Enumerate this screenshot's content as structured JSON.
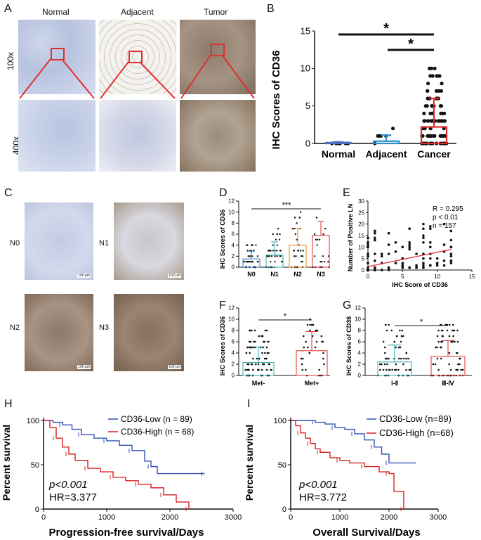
{
  "panels": {
    "A": {
      "letter": "A",
      "columns": [
        "Normal",
        "Adjacent",
        "Tumor"
      ],
      "rows": [
        "100x",
        "400x"
      ]
    },
    "B": {
      "letter": "B",
      "ylabel": "IHC Scores of CD36",
      "categories": [
        "Normal",
        "Adjacent",
        "Cancer"
      ],
      "sig": [
        "*",
        "*"
      ],
      "yticks": [
        "0",
        "5",
        "10",
        "15"
      ]
    },
    "C": {
      "letter": "C",
      "labels": [
        "N0",
        "N1",
        "N2",
        "N3"
      ],
      "scale": "100 μm"
    },
    "D": {
      "letter": "D",
      "ylabel": "IHC Scores of CD36",
      "categories": [
        "N0",
        "N1",
        "N2",
        "N3"
      ],
      "sig": "***",
      "yticks": [
        "0",
        "2",
        "4",
        "6",
        "8",
        "10",
        "12"
      ]
    },
    "E": {
      "letter": "E",
      "ylabel": "Number of Positive LN",
      "xlabel": "IHC Score of CD36",
      "stats": [
        "R = 0.295",
        "p < 0.01",
        "n = 157"
      ],
      "xticks": [
        "0",
        "5",
        "10",
        "15"
      ],
      "yticks": [
        "0",
        "5",
        "10",
        "15",
        "20",
        "25",
        "30"
      ]
    },
    "F": {
      "letter": "F",
      "ylabel": "IHC Scores of CD36",
      "categories": [
        "Met-",
        "Met+"
      ],
      "sig": "*",
      "yticks": [
        "0",
        "2",
        "4",
        "6",
        "8",
        "10",
        "12"
      ]
    },
    "G": {
      "letter": "G",
      "ylabel": "IHC Scores of CD36",
      "categories": [
        "Ⅰ-Ⅱ",
        "Ⅲ-Ⅳ"
      ],
      "sig": "*",
      "yticks": [
        "0",
        "2",
        "4",
        "6",
        "8",
        "10",
        "12"
      ]
    },
    "H": {
      "letter": "H",
      "ylabel": "Percent survival",
      "xlabel": "Progression-free survival/Days",
      "legend": [
        "CD36-Low (n = 89)",
        "CD36-High (n = 68)"
      ],
      "pval": "p<0.001",
      "hr": "HR=3.377",
      "xticks": [
        "0",
        "1000",
        "2000",
        "3000"
      ],
      "yticks": [
        "0",
        "50",
        "100"
      ]
    },
    "I": {
      "letter": "I",
      "ylabel": "Percent survival",
      "xlabel": "Overall Survival/Days",
      "legend": [
        "CD36-Low (n=89)",
        "CD36-High (n=68)"
      ],
      "pval": "p<0.001",
      "hr": "HR=3.772",
      "xticks": [
        "0",
        "1000",
        "2000",
        "3000"
      ],
      "yticks": [
        "0",
        "50",
        "100"
      ]
    }
  },
  "colors": {
    "normal": "#4a6fc2",
    "adjacent": "#2a8fd0",
    "cancer": "#e02a2a",
    "teal": "#28a8a8",
    "orange": "#e08a1a",
    "low": "#3050b0",
    "high": "#d82020"
  },
  "chart_data": [
    {
      "type": "scatter",
      "id": "B",
      "categories": [
        "Normal",
        "Adjacent",
        "Cancer"
      ],
      "means": [
        0.1,
        0.3,
        2.2
      ],
      "sd": [
        0.1,
        0.8,
        3.8
      ],
      "ylim": [
        0,
        15
      ]
    },
    {
      "type": "scatter",
      "id": "D",
      "categories": [
        "N0",
        "N1",
        "N2",
        "N3"
      ],
      "means": [
        1.5,
        2.2,
        4.0,
        5.8
      ],
      "sd": [
        1.4,
        2.4,
        3.0,
        2.5
      ],
      "ylim": [
        0,
        12
      ]
    },
    {
      "type": "scatter",
      "id": "E",
      "xlim": [
        0,
        15
      ],
      "ylim": [
        0,
        30
      ],
      "fit": [
        [
          0,
          1.5
        ],
        [
          12,
          9
        ]
      ]
    },
    {
      "type": "scatter",
      "id": "F",
      "categories": [
        "Met-",
        "Met+"
      ],
      "means": [
        2.3,
        4.4
      ],
      "sd": [
        2.8,
        3.4
      ],
      "ylim": [
        0,
        12
      ]
    },
    {
      "type": "scatter",
      "id": "G",
      "categories": [
        "Ⅰ-Ⅱ",
        "Ⅲ-Ⅳ"
      ],
      "means": [
        2.4,
        3.4
      ],
      "sd": [
        3.0,
        2.8
      ],
      "ylim": [
        0,
        12
      ]
    },
    {
      "type": "line",
      "id": "H",
      "xlim": [
        0,
        3000
      ],
      "ylim": [
        0,
        100
      ],
      "series": [
        {
          "name": "CD36-Low (n = 89)",
          "points": [
            [
              0,
              100
            ],
            [
              150,
              98
            ],
            [
              300,
              95
            ],
            [
              450,
              90
            ],
            [
              600,
              84
            ],
            [
              800,
              80
            ],
            [
              1000,
              77
            ],
            [
              1200,
              72
            ],
            [
              1400,
              66
            ],
            [
              1600,
              54
            ],
            [
              1700,
              48
            ],
            [
              1800,
              40
            ],
            [
              2550,
              40
            ]
          ]
        },
        {
          "name": "CD36-High (n = 68)",
          "points": [
            [
              0,
              100
            ],
            [
              100,
              92
            ],
            [
              200,
              80
            ],
            [
              300,
              70
            ],
            [
              400,
              62
            ],
            [
              500,
              55
            ],
            [
              700,
              46
            ],
            [
              900,
              42
            ],
            [
              1100,
              36
            ],
            [
              1300,
              32
            ],
            [
              1500,
              28
            ],
            [
              1700,
              24
            ],
            [
              1900,
              16
            ],
            [
              2100,
              8
            ],
            [
              2300,
              0
            ]
          ]
        }
      ]
    },
    {
      "type": "line",
      "id": "I",
      "xlim": [
        0,
        3000
      ],
      "ylim": [
        0,
        100
      ],
      "series": [
        {
          "name": "CD36-Low (n=89)",
          "points": [
            [
              0,
              100
            ],
            [
              300,
              100
            ],
            [
              500,
              98
            ],
            [
              700,
              96
            ],
            [
              900,
              92
            ],
            [
              1100,
              90
            ],
            [
              1300,
              85
            ],
            [
              1500,
              78
            ],
            [
              1700,
              70
            ],
            [
              1850,
              62
            ],
            [
              2000,
              52
            ],
            [
              2550,
              52
            ]
          ]
        },
        {
          "name": "CD36-High (n=68)",
          "points": [
            [
              0,
              100
            ],
            [
              100,
              94
            ],
            [
              200,
              86
            ],
            [
              300,
              80
            ],
            [
              400,
              74
            ],
            [
              500,
              68
            ],
            [
              600,
              64
            ],
            [
              800,
              58
            ],
            [
              1000,
              55
            ],
            [
              1200,
              52
            ],
            [
              1500,
              48
            ],
            [
              1800,
              42
            ],
            [
              2000,
              40
            ],
            [
              2100,
              20
            ],
            [
              2300,
              0
            ]
          ]
        }
      ]
    }
  ]
}
